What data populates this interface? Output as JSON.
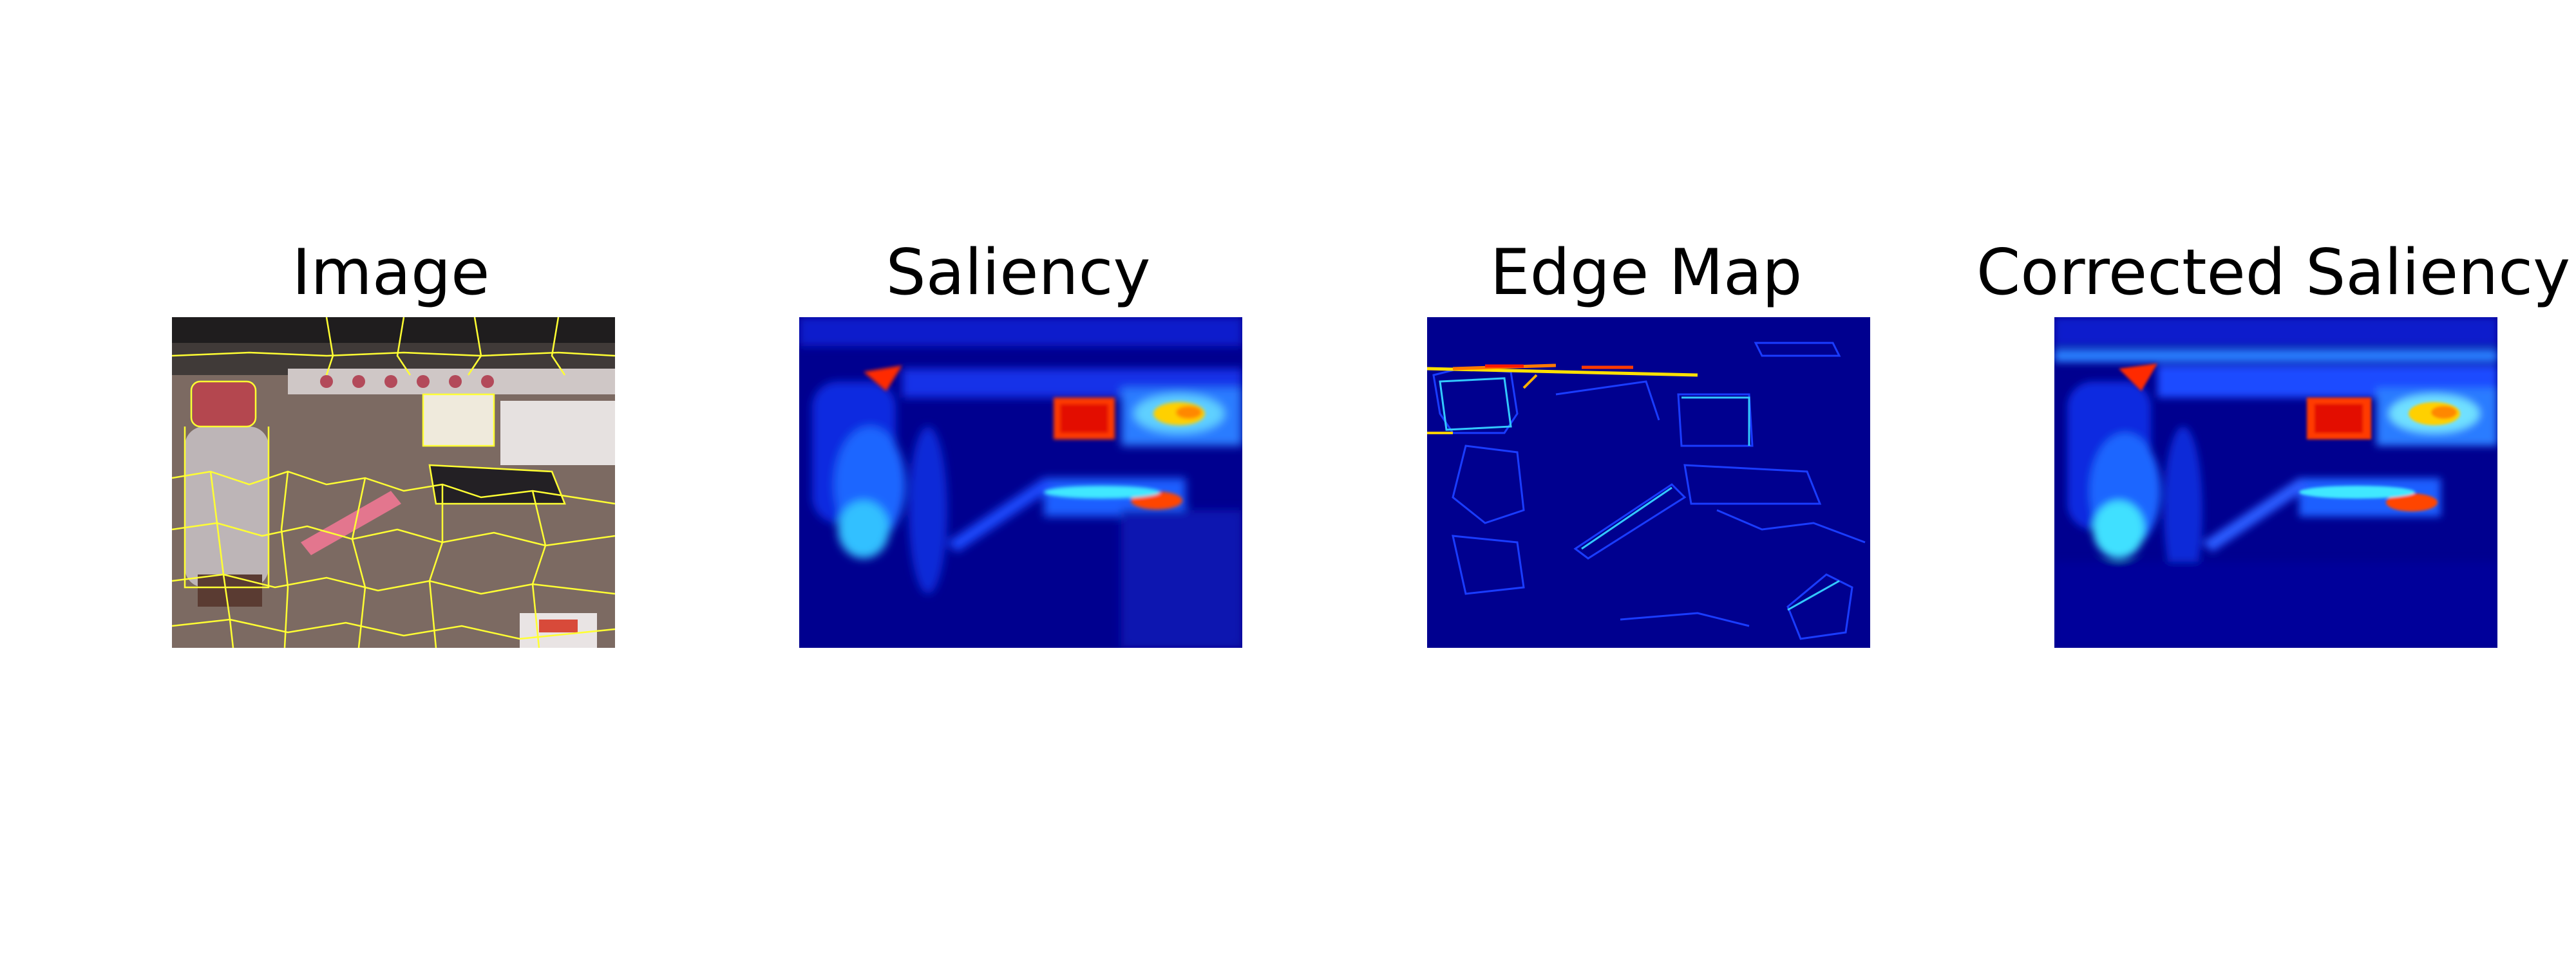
{
  "panels": [
    {
      "title": "Image"
    },
    {
      "title": "Saliency"
    },
    {
      "title": "Edge Map"
    },
    {
      "title": "Corrected Saliency"
    }
  ],
  "colors": {
    "heatmap_background": "#00008f",
    "segment_outline": "#ffff33",
    "hot": "#ff2a00",
    "warm": "#ffd000",
    "cool": "#2f6bff"
  }
}
